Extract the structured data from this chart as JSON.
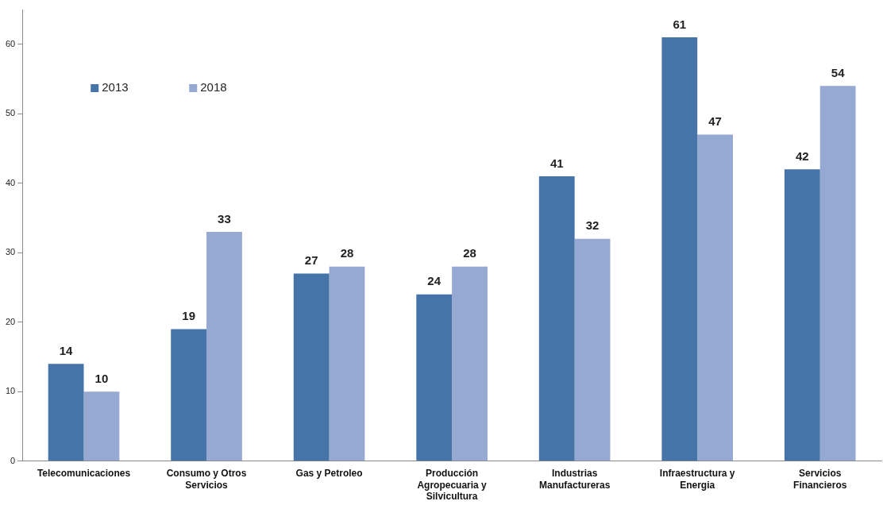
{
  "chart_data": {
    "type": "bar",
    "categories": [
      "Telecomunicaciones",
      "Consumo y Otros Servicios",
      "Gas y Petroleo",
      "Producción Agropecuaria y Silvicultura",
      "Industrias Manufactureras",
      "Infraestructura y Energia",
      "Servicios Financieros"
    ],
    "series": [
      {
        "name": "2013",
        "color": "#4673a8",
        "values": [
          14,
          19,
          27,
          24,
          41,
          61,
          42
        ]
      },
      {
        "name": "2018",
        "color": "#95a9d3",
        "values": [
          10,
          33,
          28,
          28,
          32,
          47,
          54
        ]
      }
    ],
    "ylim": [
      0,
      65
    ],
    "yticks": [
      0,
      10,
      20,
      30,
      40,
      50,
      60
    ],
    "grid": false,
    "legend": "top left",
    "data_labels": true
  }
}
